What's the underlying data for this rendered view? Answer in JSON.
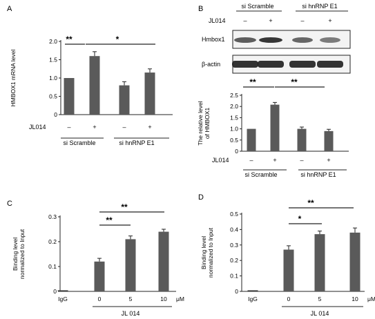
{
  "chart_data": [
    {
      "type": "bar",
      "panel": "A",
      "ylabel": "HMBOX1 mRNA level",
      "ylim": [
        0,
        2.0
      ],
      "yticks": [
        "0",
        "0.5",
        "1.0",
        "1.5",
        "2.0"
      ],
      "values": [
        1.0,
        1.6,
        0.8,
        1.15
      ],
      "errors": [
        0.0,
        0.12,
        0.1,
        0.1
      ],
      "treatment_label": "JL014",
      "treatment_marks": [
        "–",
        "+",
        "–",
        "+"
      ],
      "groups": [
        "si Scramble",
        "si hnRNP E1"
      ],
      "significance": [
        "**",
        "*"
      ],
      "color": "#5a5a5a"
    },
    {
      "type": "bar",
      "panel": "B",
      "ylabel": "The relative level of HMBOX1",
      "ylabel_lines": [
        "The relative level",
        "of HMBOX1"
      ],
      "ylim": [
        0,
        2.5
      ],
      "yticks": [
        "0",
        "0.5",
        "1.0",
        "1.5",
        "2.0",
        "2.5"
      ],
      "values": [
        1.0,
        2.08,
        1.0,
        0.9
      ],
      "errors": [
        0.0,
        0.1,
        0.08,
        0.08
      ],
      "treatment_label": "JL014",
      "treatment_marks": [
        "–",
        "+",
        "–",
        "+"
      ],
      "groups": [
        "si Scramble",
        "si hnRNP E1"
      ],
      "significance": [
        "**",
        "**"
      ],
      "blot_rows": [
        "Hmbox1",
        "β-actin"
      ],
      "color": "#5a5a5a"
    },
    {
      "type": "bar",
      "panel": "C",
      "ylabel": "Binding level normalized to Input",
      "ylabel_lines": [
        "Binding level",
        "normalized to Input"
      ],
      "ylim": [
        0,
        0.3
      ],
      "yticks": [
        "0",
        "0.1",
        "0.2",
        "0.3"
      ],
      "categories": [
        "IgG",
        "0",
        "5",
        "10"
      ],
      "values": [
        0.0,
        0.12,
        0.21,
        0.24
      ],
      "errors": [
        0.0,
        0.013,
        0.013,
        0.01
      ],
      "unit": "μM",
      "group": "JL 014",
      "significance": [
        "**",
        "**"
      ],
      "color": "#5a5a5a"
    },
    {
      "type": "bar",
      "panel": "D",
      "ylabel": "Binding level normalized to Input",
      "ylabel_lines": [
        "Binding level",
        "normalized to Input"
      ],
      "ylim": [
        0,
        0.5
      ],
      "yticks": [
        "0",
        "0.1",
        "0.2",
        "0.3",
        "0.4",
        "0.5"
      ],
      "categories": [
        "IgG",
        "0",
        "5",
        "10"
      ],
      "values": [
        0.0,
        0.27,
        0.37,
        0.38
      ],
      "errors": [
        0.0,
        0.025,
        0.02,
        0.03
      ],
      "unit": "μM",
      "group": "JL 014",
      "significance": [
        "*",
        "**"
      ],
      "color": "#5a5a5a"
    }
  ]
}
